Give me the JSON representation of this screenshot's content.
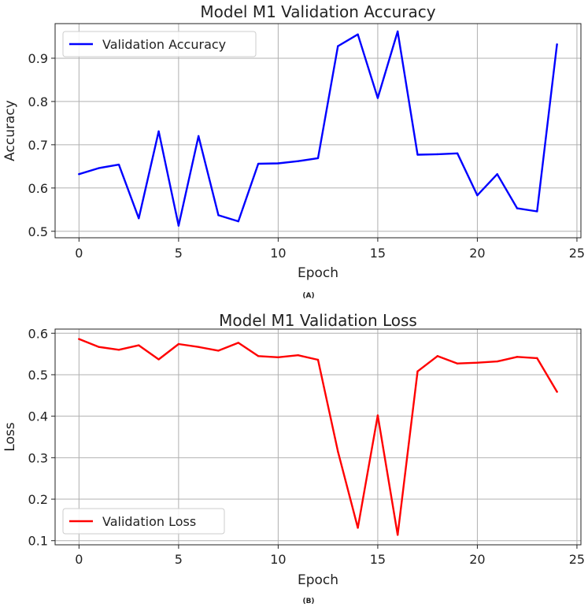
{
  "chart_data": [
    {
      "type": "line",
      "panel_label": "(A)",
      "title": "Model M1 Validation Accuracy",
      "xlabel": "Epoch",
      "ylabel": "Accuracy",
      "xlim": [
        -1.2,
        25.2
      ],
      "ylim": [
        0.485,
        0.98
      ],
      "xticks": [
        0,
        5,
        10,
        15,
        20,
        25
      ],
      "yticks": [
        0.5,
        0.6,
        0.7,
        0.8,
        0.9
      ],
      "ytick_labels": [
        "0.5",
        "0.6",
        "0.7",
        "0.8",
        "0.9"
      ],
      "grid": true,
      "legend_position": "upper-left",
      "series": [
        {
          "name": "Validation Accuracy",
          "color": "#0000ff",
          "x": [
            0,
            1,
            2,
            3,
            4,
            5,
            6,
            7,
            8,
            9,
            10,
            11,
            12,
            13,
            14,
            15,
            16,
            17,
            18,
            19,
            20,
            21,
            22,
            23,
            24
          ],
          "values": [
            0.632,
            0.646,
            0.654,
            0.53,
            0.731,
            0.513,
            0.72,
            0.537,
            0.523,
            0.656,
            0.657,
            0.662,
            0.669,
            0.928,
            0.955,
            0.808,
            0.962,
            0.677,
            0.678,
            0.68,
            0.583,
            0.632,
            0.553,
            0.546,
            0.932
          ]
        }
      ]
    },
    {
      "type": "line",
      "panel_label": "(B)",
      "title": "Model M1 Validation Loss",
      "xlabel": "Epoch",
      "ylabel": "Loss",
      "xlim": [
        -1.2,
        25.2
      ],
      "ylim": [
        0.09,
        0.61
      ],
      "xticks": [
        0,
        5,
        10,
        15,
        20,
        25
      ],
      "yticks": [
        0.1,
        0.2,
        0.3,
        0.4,
        0.5,
        0.6
      ],
      "ytick_labels": [
        "0.1",
        "0.2",
        "0.3",
        "0.4",
        "0.5",
        "0.6"
      ],
      "grid": true,
      "legend_position": "lower-left",
      "series": [
        {
          "name": "Validation Loss",
          "color": "#ff0000",
          "x": [
            0,
            1,
            2,
            3,
            4,
            5,
            6,
            7,
            8,
            9,
            10,
            11,
            12,
            13,
            14,
            15,
            16,
            17,
            18,
            19,
            20,
            21,
            22,
            23,
            24
          ],
          "values": [
            0.586,
            0.567,
            0.56,
            0.571,
            0.537,
            0.574,
            0.567,
            0.558,
            0.577,
            0.545,
            0.542,
            0.547,
            0.536,
            0.315,
            0.131,
            0.402,
            0.114,
            0.508,
            0.545,
            0.527,
            0.529,
            0.532,
            0.543,
            0.54,
            0.459
          ]
        }
      ]
    }
  ]
}
